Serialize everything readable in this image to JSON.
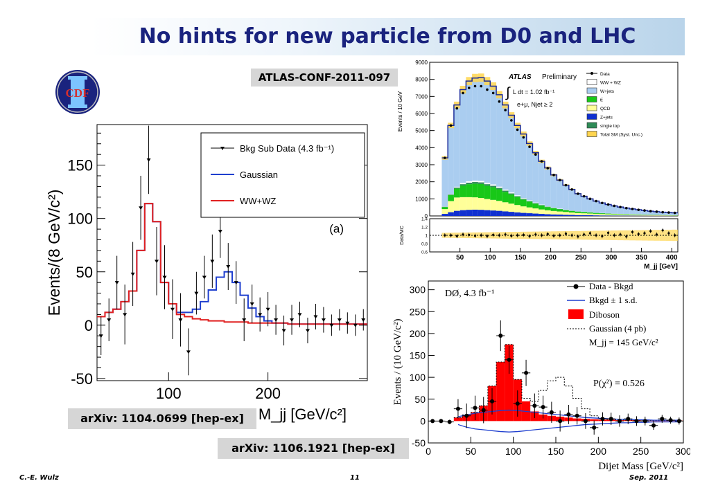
{
  "slide": {
    "title": "No hints for new particle from D0 and LHC",
    "atlas_ref": "ATLAS-CONF-2011-097",
    "cdf_ref": "arXiv: 1104.0699 [hep-ex]",
    "d0_ref": "arXiv: 1106.1921 [hep-ex]",
    "footer_left": "C.-E. Wulz",
    "footer_page": "11",
    "footer_right": "Sep. 2011",
    "logo_text": "CDF"
  },
  "colors": {
    "title": "#1a237e",
    "gaussian": "#1f3fcf",
    "wwwz": "#e02020",
    "diboson": "#ff0000",
    "wjets": "#aacdf0",
    "ttbar": "#18c818",
    "qcd": "#ffff99",
    "zjets": "#1030d0",
    "singletop": "#2e8b57",
    "uncert": "#ffd54f"
  },
  "chart_data": [
    {
      "type": "line",
      "experiment": "CDF",
      "xlabel": "M_jj [GeV/c²]",
      "ylabel": "Events/(8 GeV/c²)",
      "xlim": [
        28,
        300
      ],
      "ylim": [
        -52,
        188
      ],
      "xticks": [
        100,
        200
      ],
      "yticks": [
        -50,
        0,
        50,
        100,
        150
      ],
      "panel_label": "(a)",
      "legend": [
        "Bkg Sub Data (4.3 fb⁻¹)",
        "Gaussian",
        "WW+WZ"
      ],
      "bin_edges": [
        28,
        36,
        44,
        52,
        60,
        68,
        76,
        84,
        92,
        100,
        108,
        116,
        124,
        132,
        140,
        148,
        156,
        164,
        172,
        180,
        188,
        196,
        204,
        212,
        220,
        228,
        236,
        244,
        252,
        260,
        268,
        276,
        284,
        292,
        300
      ],
      "series": [
        {
          "name": "WW+WZ",
          "values": [
            8,
            12,
            15,
            22,
            32,
            70,
            114,
            97,
            40,
            20,
            10,
            8,
            6,
            5,
            4,
            4,
            3,
            3,
            3,
            2,
            2,
            2,
            2,
            2,
            1,
            1,
            1,
            1,
            1,
            1,
            1,
            1,
            1,
            1
          ]
        },
        {
          "name": "Gaussian",
          "values": [
            8,
            12,
            15,
            22,
            32,
            70,
            114,
            97,
            40,
            20,
            12,
            12,
            15,
            22,
            33,
            45,
            50,
            40,
            28,
            16,
            8,
            4,
            2,
            2,
            1,
            1,
            1,
            1,
            1,
            1,
            1,
            1,
            1,
            1
          ]
        }
      ],
      "data_points": [
        {
          "x": 32,
          "y": -10,
          "err": 18
        },
        {
          "x": 40,
          "y": 5,
          "err": 20
        },
        {
          "x": 48,
          "y": 40,
          "err": 25
        },
        {
          "x": 56,
          "y": 10,
          "err": 28
        },
        {
          "x": 64,
          "y": 48,
          "err": 30
        },
        {
          "x": 72,
          "y": 110,
          "err": 30
        },
        {
          "x": 80,
          "y": 155,
          "err": 32
        },
        {
          "x": 88,
          "y": 60,
          "err": 32
        },
        {
          "x": 96,
          "y": 45,
          "err": 30
        },
        {
          "x": 104,
          "y": 15,
          "err": 28
        },
        {
          "x": 112,
          "y": 5,
          "err": 25
        },
        {
          "x": 120,
          "y": -25,
          "err": 22
        },
        {
          "x": 128,
          "y": 30,
          "err": 20
        },
        {
          "x": 136,
          "y": 45,
          "err": 20
        },
        {
          "x": 144,
          "y": 60,
          "err": 25
        },
        {
          "x": 152,
          "y": 88,
          "err": 25
        },
        {
          "x": 160,
          "y": 55,
          "err": 22
        },
        {
          "x": 168,
          "y": 40,
          "err": 20
        },
        {
          "x": 176,
          "y": 5,
          "err": 20
        },
        {
          "x": 184,
          "y": 20,
          "err": 18
        },
        {
          "x": 192,
          "y": 10,
          "err": 16
        },
        {
          "x": 200,
          "y": 15,
          "err": 16
        },
        {
          "x": 208,
          "y": 5,
          "err": 14
        },
        {
          "x": 216,
          "y": -5,
          "err": 14
        },
        {
          "x": 224,
          "y": 5,
          "err": 14
        },
        {
          "x": 232,
          "y": 10,
          "err": 12
        },
        {
          "x": 240,
          "y": -5,
          "err": 12
        },
        {
          "x": 248,
          "y": 8,
          "err": 12
        },
        {
          "x": 256,
          "y": 5,
          "err": 12
        },
        {
          "x": 264,
          "y": 0,
          "err": 10
        },
        {
          "x": 272,
          "y": 5,
          "err": 10
        },
        {
          "x": 280,
          "y": 2,
          "err": 10
        },
        {
          "x": 288,
          "y": 0,
          "err": 10
        },
        {
          "x": 296,
          "y": 5,
          "err": 10
        }
      ]
    },
    {
      "type": "bar",
      "experiment": "ATLAS",
      "stacked": true,
      "label": "ATLAS",
      "label_suffix": "Preliminary",
      "luminosity": "L dt = 1.02 fb⁻¹",
      "selection": "e+μ, Njet ≥ 2",
      "xlabel": "M_jj [GeV]",
      "ylabel": "Events / 10 GeV",
      "ratio_ylabel": "Data/MC",
      "xlim": [
        0,
        410
      ],
      "ylim": [
        0,
        9000
      ],
      "ratio_ylim": [
        0.6,
        1.4
      ],
      "xticks": [
        50,
        100,
        150,
        200,
        250,
        300,
        350,
        400
      ],
      "yticks": [
        0,
        1000,
        2000,
        3000,
        4000,
        5000,
        6000,
        7000,
        8000,
        9000
      ],
      "ratio_yticks": [
        0.6,
        0.8,
        1,
        1.2,
        1.4
      ],
      "legend": [
        "Data",
        "WW + WZ",
        "W+jets",
        "tt̄",
        "QCD",
        "Z+jets",
        "single top",
        "Total SM (Syst. Unc.)"
      ],
      "bin_edges": [
        20,
        30,
        40,
        50,
        60,
        70,
        80,
        90,
        100,
        110,
        120,
        130,
        140,
        150,
        160,
        170,
        180,
        190,
        200,
        210,
        220,
        230,
        240,
        250,
        260,
        270,
        280,
        290,
        300,
        310,
        320,
        330,
        340,
        350,
        360,
        370,
        380,
        390,
        400,
        410
      ],
      "series": [
        {
          "name": "Z+jets",
          "values": [
            120,
            220,
            300,
            340,
            360,
            370,
            360,
            340,
            320,
            300,
            270,
            240,
            210,
            180,
            160,
            140,
            120,
            100,
            90,
            80,
            70,
            60,
            50,
            45,
            40,
            35,
            30,
            28,
            25,
            22,
            20,
            18,
            16,
            14,
            12,
            10,
            10,
            8,
            8
          ]
        },
        {
          "name": "QCD",
          "values": [
            280,
            650,
            780,
            760,
            740,
            720,
            690,
            650,
            620,
            580,
            530,
            480,
            430,
            380,
            340,
            300,
            260,
            230,
            200,
            180,
            160,
            140,
            120,
            110,
            100,
            90,
            80,
            70,
            65,
            60,
            55,
            50,
            45,
            40,
            35,
            30,
            28,
            25,
            22
          ]
        },
        {
          "name": "tt̄",
          "values": [
            120,
            350,
            520,
            680,
            760,
            800,
            820,
            780,
            740,
            680,
            610,
            540,
            470,
            400,
            340,
            280,
            230,
            190,
            160,
            130,
            110,
            90,
            80,
            70,
            60,
            50,
            45,
            40,
            35,
            30,
            28,
            25,
            22,
            20,
            18,
            16,
            14,
            12,
            10
          ]
        },
        {
          "name": "single top",
          "values": [
            20,
            40,
            60,
            80,
            90,
            95,
            95,
            90,
            85,
            80,
            70,
            60,
            50,
            45,
            40,
            35,
            30,
            25,
            22,
            20,
            18,
            16,
            14,
            12,
            10,
            9,
            8,
            7,
            6,
            5,
            5,
            4,
            4,
            3,
            3,
            3,
            2,
            2,
            2
          ]
        },
        {
          "name": "WW + WZ",
          "values": [
            10,
            30,
            50,
            70,
            80,
            85,
            90,
            85,
            80,
            75,
            65,
            55,
            48,
            40,
            35,
            30,
            25,
            22,
            20,
            18,
            15,
            13,
            12,
            10,
            9,
            8,
            7,
            6,
            5,
            5,
            4,
            4,
            3,
            3,
            3,
            2,
            2,
            2,
            2
          ]
        },
        {
          "name": "W+jets",
          "values": [
            2850,
            4010,
            4790,
            5470,
            5870,
            6010,
            6045,
            5955,
            5755,
            5385,
            4955,
            4525,
            4092,
            3755,
            3325,
            2915,
            2535,
            2243,
            1908,
            1672,
            1427,
            1231,
            1024,
            903,
            781,
            678,
            590,
            519,
            454,
            398,
            348,
            309,
            275,
            240,
            209,
            189,
            164,
            151,
            138
          ]
        }
      ],
      "data_points": [
        3400,
        5300,
        6300,
        7200,
        7500,
        7600,
        7600,
        7400,
        7200,
        6700,
        6200,
        5600,
        5050,
        4600,
        4050,
        3600,
        3200,
        2800,
        2400,
        2100,
        1800,
        1550,
        1300,
        1150,
        1000,
        870,
        760,
        670,
        590,
        520,
        460,
        410,
        360,
        320,
        280,
        250,
        220,
        200,
        180
      ],
      "ratio_points": [
        1.0,
        1.0,
        0.98,
        1.02,
        1.01,
        0.99,
        1.0,
        0.98,
        1.01,
        1.0,
        1.02,
        0.99,
        1.0,
        1.01,
        0.98,
        1.02,
        1.0,
        1.03,
        0.99,
        1.0,
        1.04,
        1.0,
        0.97,
        1.02,
        1.05,
        1.0,
        0.98,
        1.06,
        1.0,
        1.02,
        0.97,
        1.08,
        1.03,
        1.05,
        1.1,
        1.02,
        1.12,
        1.05,
        1.0
      ]
    },
    {
      "type": "bar",
      "experiment": "D0",
      "label": "DØ, 4.3 fb⁻¹",
      "xlabel": "Dijet Mass [GeV/c²]",
      "ylabel": "Events / (10 GeV/c²)",
      "xlim": [
        0,
        300
      ],
      "ylim": [
        -50,
        320
      ],
      "xticks": [
        0,
        50,
        100,
        150,
        200,
        250,
        300
      ],
      "yticks": [
        -50,
        0,
        50,
        100,
        150,
        200,
        250,
        300
      ],
      "legend": [
        "Data - Bkgd",
        "Bkgd ± 1 s.d.",
        "Diboson",
        "Gaussian (4 pb)",
        "M_jj = 145 GeV/c²"
      ],
      "annotation": "P(χ²) = 0.526",
      "bin_edges": [
        30,
        40,
        50,
        60,
        70,
        80,
        90,
        100,
        110,
        120,
        130,
        140,
        150,
        160,
        170,
        180,
        190,
        200,
        210,
        220,
        230,
        240,
        250,
        260,
        270,
        280,
        290,
        300
      ],
      "series": [
        {
          "name": "Diboson",
          "values": [
            8,
            14,
            20,
            35,
            80,
            135,
            175,
            95,
            45,
            22,
            15,
            12,
            10,
            8,
            6,
            5,
            4,
            3,
            3,
            2,
            2,
            2,
            1,
            1,
            1,
            1,
            1
          ]
        },
        {
          "name": "Gaussian (4 pb)",
          "values": [
            8,
            14,
            20,
            35,
            80,
            135,
            175,
            95,
            52,
            45,
            70,
            92,
            100,
            80,
            52,
            28,
            12,
            6,
            4,
            3,
            2,
            2,
            1,
            1,
            1,
            1,
            1
          ]
        }
      ],
      "band_upper": [
        10,
        14,
        18,
        20,
        22,
        24,
        25,
        24,
        22,
        20,
        18,
        16,
        14,
        12,
        10,
        8,
        7,
        6,
        5,
        4,
        4,
        3,
        3,
        2,
        2,
        2,
        2
      ],
      "band_lower": [
        -8,
        -14,
        -18,
        -20,
        -22,
        -24,
        -25,
        -24,
        -22,
        -20,
        -18,
        -16,
        -14,
        -12,
        -10,
        -8,
        -7,
        -6,
        -5,
        -4,
        -4,
        -3,
        -3,
        -2,
        -2,
        -2,
        -2
      ],
      "data_points": [
        {
          "x": 5,
          "y": 0,
          "err": 3
        },
        {
          "x": 15,
          "y": 0,
          "err": 4
        },
        {
          "x": 25,
          "y": -2,
          "err": 5
        },
        {
          "x": 35,
          "y": 28,
          "err": 22
        },
        {
          "x": 45,
          "y": 12,
          "err": 28
        },
        {
          "x": 55,
          "y": 30,
          "err": 28
        },
        {
          "x": 65,
          "y": 25,
          "err": 30
        },
        {
          "x": 75,
          "y": 45,
          "err": 30
        },
        {
          "x": 85,
          "y": 195,
          "err": 35
        },
        {
          "x": 95,
          "y": 140,
          "err": 32
        },
        {
          "x": 105,
          "y": 40,
          "err": 30
        },
        {
          "x": 115,
          "y": 110,
          "err": 30
        },
        {
          "x": 125,
          "y": 35,
          "err": 28
        },
        {
          "x": 135,
          "y": 32,
          "err": 26
        },
        {
          "x": 145,
          "y": 20,
          "err": 24
        },
        {
          "x": 155,
          "y": 0,
          "err": 24
        },
        {
          "x": 165,
          "y": 15,
          "err": 22
        },
        {
          "x": 175,
          "y": 12,
          "err": 20
        },
        {
          "x": 185,
          "y": 0,
          "err": 18
        },
        {
          "x": 195,
          "y": -15,
          "err": 16
        },
        {
          "x": 205,
          "y": 5,
          "err": 15
        },
        {
          "x": 215,
          "y": 5,
          "err": 14
        },
        {
          "x": 225,
          "y": 0,
          "err": 13
        },
        {
          "x": 235,
          "y": 5,
          "err": 12
        },
        {
          "x": 245,
          "y": 0,
          "err": 11
        },
        {
          "x": 255,
          "y": 0,
          "err": 10
        },
        {
          "x": 265,
          "y": -10,
          "err": 10
        },
        {
          "x": 275,
          "y": 5,
          "err": 9
        },
        {
          "x": 285,
          "y": 2,
          "err": 8
        },
        {
          "x": 295,
          "y": 0,
          "err": 8
        }
      ]
    }
  ]
}
